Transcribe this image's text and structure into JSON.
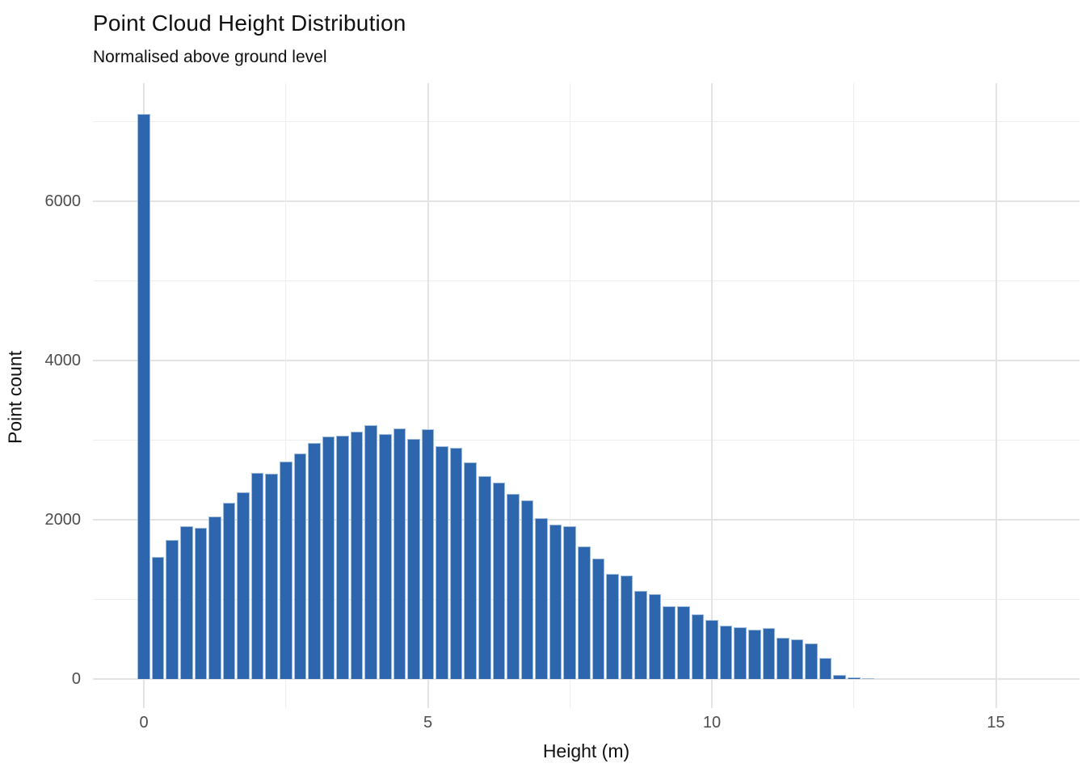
{
  "header": {
    "title": "Point Cloud Height Distribution",
    "subtitle": "Normalised above ground level"
  },
  "chart_data": {
    "type": "bar",
    "subtype": "histogram",
    "title": "Point Cloud Height Distribution",
    "subtitle": "Normalised above ground level",
    "xlabel": "Height (m)",
    "ylabel": "Point count",
    "bin_width": 0.25,
    "bin_centers": [
      0.0,
      0.25,
      0.5,
      0.75,
      1.0,
      1.25,
      1.5,
      1.75,
      2.0,
      2.25,
      2.5,
      2.75,
      3.0,
      3.25,
      3.5,
      3.75,
      4.0,
      4.25,
      4.5,
      4.75,
      5.0,
      5.25,
      5.5,
      5.75,
      6.0,
      6.25,
      6.5,
      6.75,
      7.0,
      7.25,
      7.5,
      7.75,
      8.0,
      8.25,
      8.5,
      8.75,
      9.0,
      9.25,
      9.5,
      9.75,
      10.0,
      10.25,
      10.5,
      10.75,
      11.0,
      11.25,
      11.5,
      11.75,
      12.0,
      12.25,
      12.5,
      12.75
    ],
    "counts": [
      7100,
      1530,
      1750,
      1915,
      1895,
      2040,
      2215,
      2350,
      2590,
      2575,
      2730,
      2830,
      2960,
      3045,
      3055,
      3105,
      3185,
      3075,
      3145,
      3015,
      3135,
      2925,
      2900,
      2720,
      2545,
      2465,
      2325,
      2245,
      2020,
      1940,
      1915,
      1660,
      1510,
      1320,
      1295,
      1110,
      1065,
      910,
      912,
      812,
      738,
      675,
      645,
      615,
      635,
      520,
      498,
      448,
      260,
      50,
      18,
      14
    ],
    "x_major_ticks": [
      0,
      5,
      10,
      15
    ],
    "x_tick_labels": [
      "0",
      "5",
      "10",
      "15"
    ],
    "x_minor_ticks": [
      2.5,
      7.5,
      12.5
    ],
    "y_major_ticks": [
      0,
      2000,
      4000,
      6000
    ],
    "y_tick_labels": [
      "0",
      "2000",
      "4000",
      "6000"
    ],
    "y_minor_ticks": [
      1000,
      3000,
      5000,
      7000
    ],
    "xlim": [
      -0.88,
      16.46
    ],
    "ylim": [
      0,
      7455
    ],
    "grid": true,
    "legend": "none",
    "bar_color": "#2e66ae",
    "bar_border_color": "#9dbbdd",
    "grid_major_color": "#e3e3e3",
    "grid_minor_color": "#ededed",
    "tick_label_color": "#4d4d4d",
    "text_color": "#111111",
    "background_color": "#ffffff"
  }
}
